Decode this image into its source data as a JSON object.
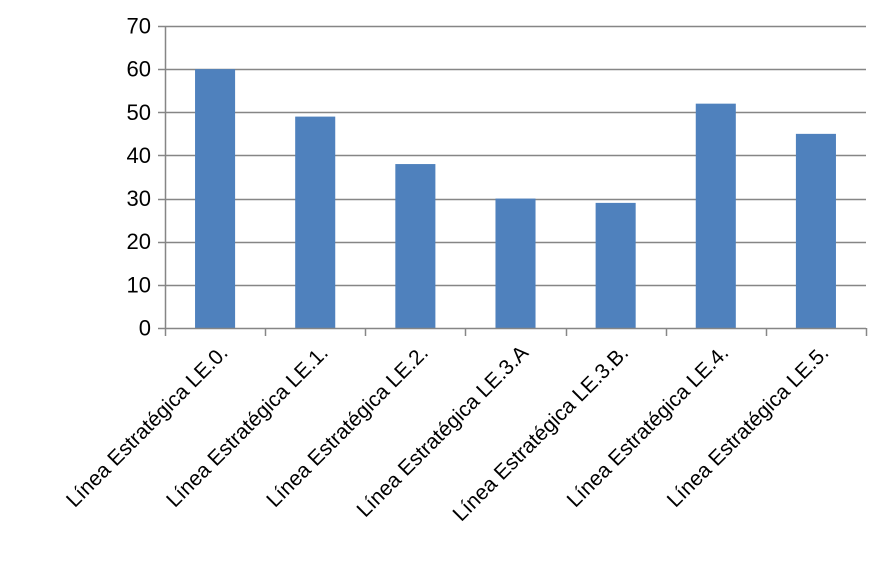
{
  "chart_data": {
    "type": "bar",
    "categories": [
      "Línea Estratégica LE.0.",
      "Línea Estratégica LE.1.",
      "Línea Estratégica LE.2.",
      "Línea Estratégica LE.3.A",
      "Línea Estratégica LE.3.B.",
      "Línea Estratégica LE.4.",
      "Línea Estratégica LE.5."
    ],
    "values": [
      60,
      49,
      38,
      30,
      29,
      52,
      45
    ],
    "ylim": [
      0,
      70
    ],
    "yticks": [
      0,
      10,
      20,
      30,
      40,
      50,
      60,
      70
    ],
    "grid": true,
    "legend": "none",
    "bar_color": "#4f81bd",
    "grid_color": "#868686",
    "axis_color": "#868686"
  }
}
